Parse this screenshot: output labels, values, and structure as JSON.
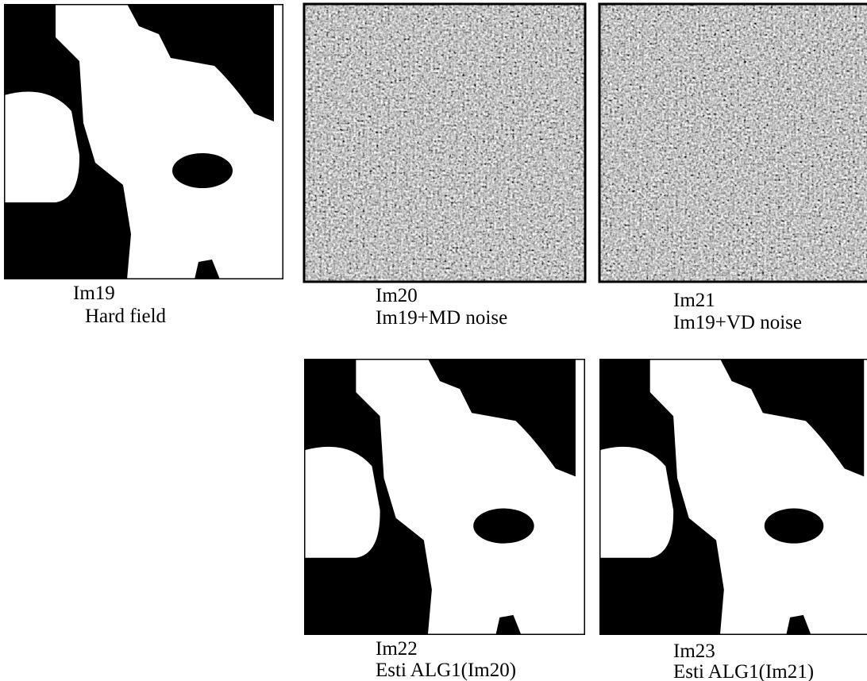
{
  "figures": [
    {
      "id": "Im19",
      "caption": "Hard field"
    },
    {
      "id": "Im20",
      "caption": "Im19+MD noise"
    },
    {
      "id": "Im21",
      "caption": "Im19+VD noise"
    },
    {
      "id": "Im22",
      "caption": "Esti ALG1(Im20)"
    },
    {
      "id": "Im23",
      "caption": "Esti ALG1(Im21)"
    }
  ]
}
